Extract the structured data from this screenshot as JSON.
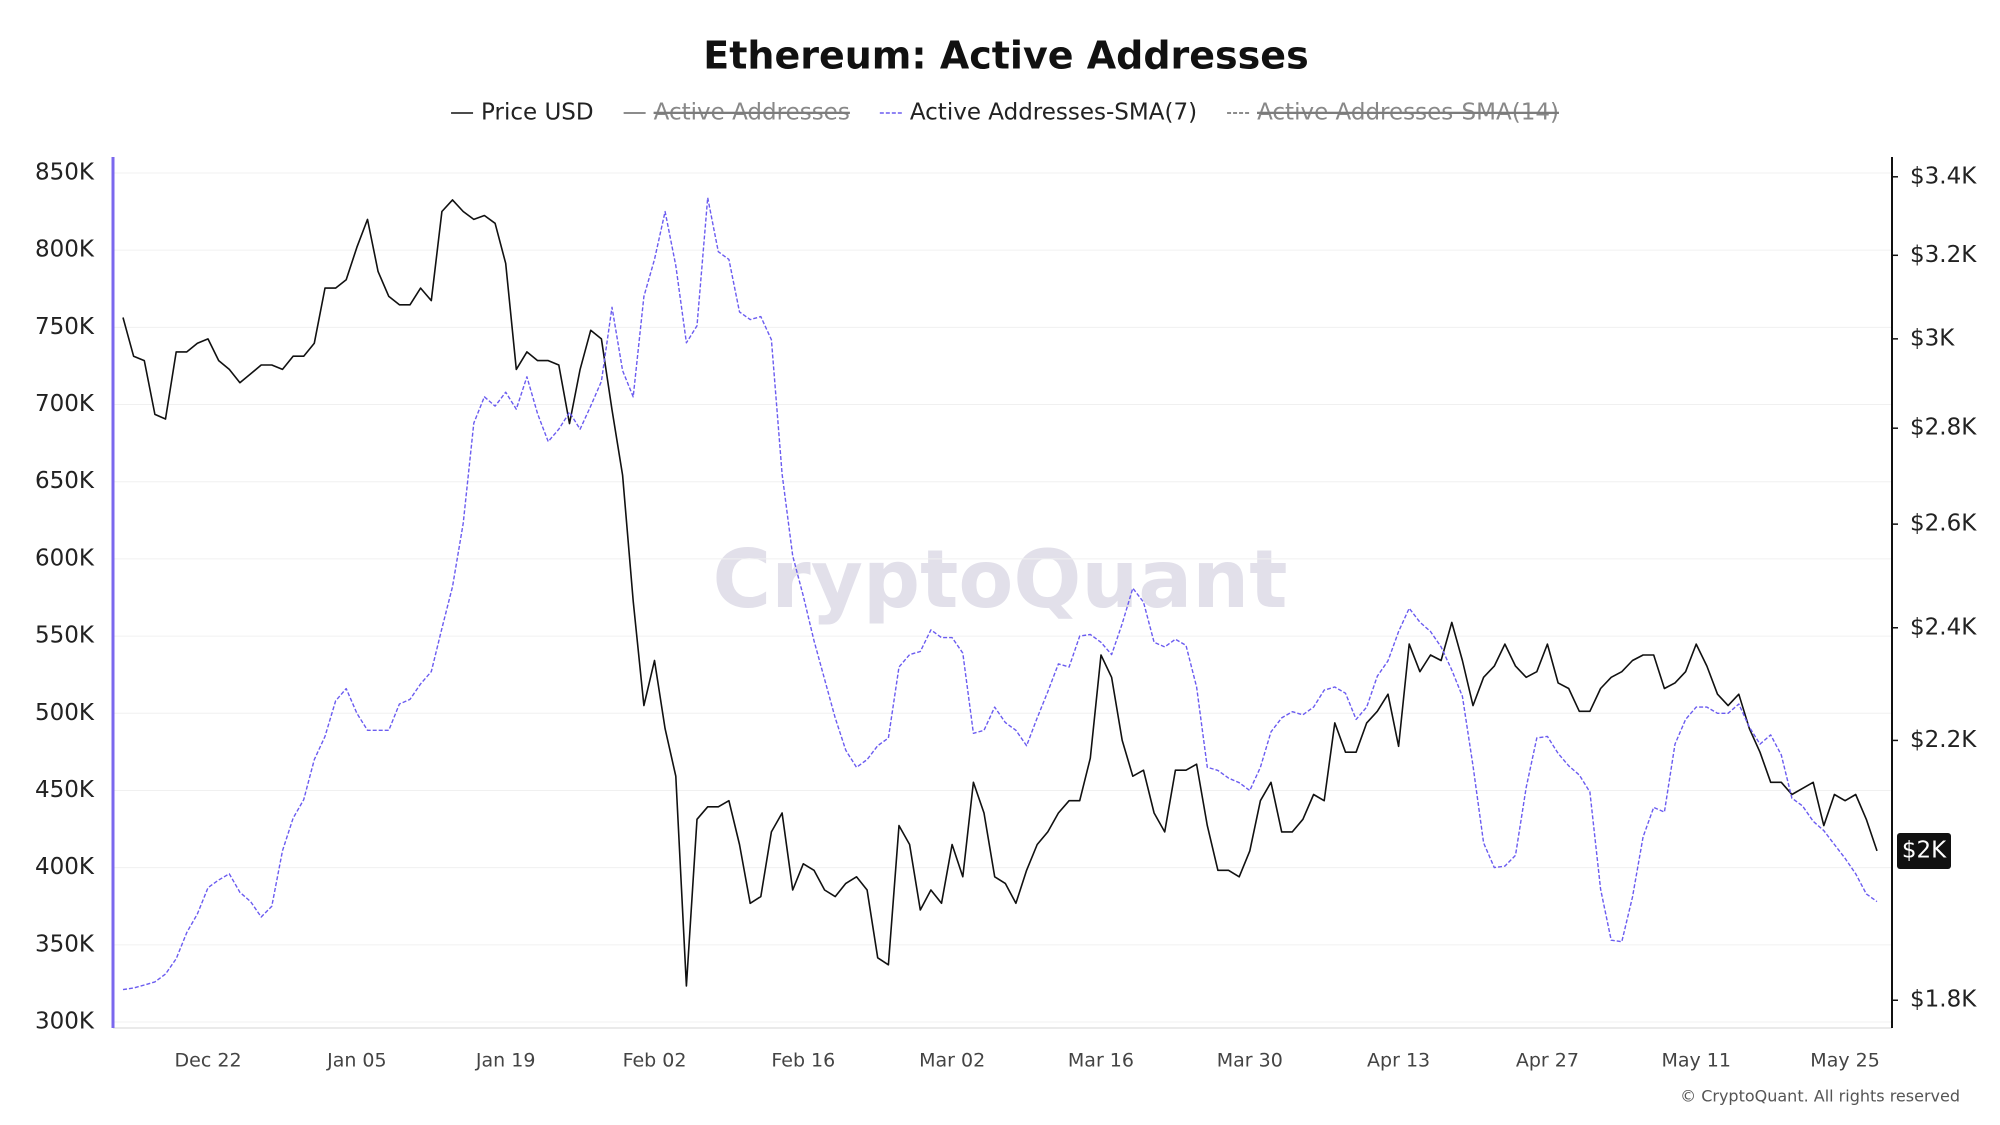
{
  "chart_data": {
    "type": "line",
    "title": "Ethereum: Active Addresses",
    "watermark": "CryptoQuant",
    "copyright": "© CryptoQuant. All rights reserved",
    "categories": [
      null,
      null,
      null,
      null,
      null,
      null,
      null,
      null,
      "Dec 22",
      null,
      null,
      null,
      null,
      null,
      null,
      null,
      null,
      null,
      null,
      null,
      null,
      null,
      "Jan 05",
      null,
      null,
      null,
      null,
      null,
      null,
      null,
      null,
      null,
      null,
      null,
      null,
      null,
      "Jan 19",
      null,
      null,
      null,
      null,
      null,
      null,
      null,
      null,
      null,
      null,
      null,
      null,
      null,
      "Feb 02",
      null,
      null,
      null,
      null,
      null,
      null,
      null,
      null,
      null,
      null,
      null,
      null,
      null,
      "Feb 16",
      null,
      null,
      null,
      null,
      null,
      null,
      null,
      null,
      null,
      null,
      null,
      null,
      null,
      "Mar 02",
      null,
      null,
      null,
      null,
      null,
      null,
      null,
      null,
      null,
      null,
      null,
      null,
      null,
      "Mar 16",
      null,
      null,
      null,
      null,
      null,
      null,
      null,
      null,
      null,
      null,
      null,
      null,
      null,
      "Mar 30",
      null,
      null,
      null,
      null,
      null,
      null,
      null,
      null,
      null,
      null,
      null,
      null,
      null,
      "Apr 13",
      null,
      null,
      null,
      null,
      null,
      null,
      null,
      null,
      null,
      null,
      null,
      null,
      null,
      "Apr 27",
      null,
      null,
      null,
      null,
      null,
      null,
      null,
      null,
      null,
      null,
      null,
      null,
      null,
      "May 11",
      null,
      null,
      null,
      null,
      null,
      null,
      null,
      null,
      null,
      null,
      null,
      null,
      null,
      "May 25",
      null,
      null,
      null
    ],
    "series": [
      {
        "name": "Price USD",
        "color": "#111111",
        "axis": "y2",
        "dash": false,
        "last_value_label": "$2K",
        "values": [
          3050,
          2960,
          2950,
          2830,
          2820,
          2970,
          2970,
          2990,
          3000,
          2950,
          2930,
          2900,
          2920,
          2940,
          2940,
          2930,
          2960,
          2960,
          2990,
          3120,
          3120,
          3140,
          3220,
          3290,
          3160,
          3100,
          3080,
          3080,
          3120,
          3090,
          3310,
          3340,
          3310,
          3290,
          3300,
          3280,
          3180,
          2930,
          2970,
          2950,
          2950,
          2940,
          2810,
          2930,
          3020,
          3000,
          2840,
          2700,
          2450,
          2260,
          2340,
          2220,
          2140,
          1820,
          2070,
          2090,
          2090,
          2100,
          2030,
          1940,
          1950,
          2050,
          2080,
          1960,
          2000,
          1990,
          1960,
          1950,
          1970,
          1980,
          1960,
          1860,
          1850,
          2060,
          2030,
          1930,
          1960,
          1940,
          2030,
          1980,
          2130,
          2080,
          1980,
          1970,
          1940,
          1990,
          2030,
          2050,
          2080,
          2100,
          2100,
          2170,
          2350,
          2310,
          2200,
          2140,
          2150,
          2080,
          2050,
          2150,
          2150,
          2160,
          2060,
          1990,
          1990,
          1980,
          2020,
          2100,
          2130,
          2050,
          2050,
          2070,
          2110,
          2100,
          2230,
          2180,
          2180,
          2230,
          2250,
          2280,
          2190,
          2370,
          2320,
          2350,
          2340,
          2410,
          2340,
          2260,
          2310,
          2330,
          2370,
          2330,
          2310,
          2320,
          2370,
          2300,
          2290,
          2250,
          2250,
          2290,
          2310,
          2320,
          2340,
          2350,
          2350,
          2290,
          2300,
          2320,
          2370,
          2330,
          2280,
          2260,
          2280,
          2220,
          2180,
          2130,
          2130,
          2110,
          2120,
          2130,
          2060,
          2110,
          2100,
          2110,
          2070,
          2020
        ]
      },
      {
        "name": "Active Addresses",
        "color": "#555555",
        "dash": false,
        "hidden": true
      },
      {
        "name": "Active Addresses-SMA(7)",
        "color": "#6b5cf0",
        "dash": true,
        "values": [
          321000,
          322000,
          324000,
          326000,
          331000,
          341000,
          358000,
          370000,
          387000,
          392000,
          396000,
          384000,
          378000,
          368000,
          375000,
          411000,
          432000,
          444000,
          470000,
          485000,
          508000,
          516000,
          500000,
          489000,
          489000,
          489000,
          506000,
          509000,
          519000,
          527000,
          555000,
          582000,
          623000,
          688000,
          705000,
          699000,
          708000,
          697000,
          718000,
          694000,
          676000,
          684000,
          695000,
          684000,
          699000,
          715000,
          763000,
          722000,
          705000,
          770000,
          794000,
          825000,
          790000,
          740000,
          751000,
          834000,
          799000,
          794000,
          760000,
          755000,
          757000,
          742000,
          655000,
          602000,
          576000,
          547000,
          522000,
          497000,
          476000,
          465000,
          470000,
          479000,
          484000,
          530000,
          538000,
          540000,
          554000,
          549000,
          549000,
          539000,
          487000,
          489000,
          504000,
          494000,
          489000,
          479000,
          497000,
          514000,
          532000,
          530000,
          550000,
          551000,
          546000,
          538000,
          558000,
          581000,
          572000,
          546000,
          543000,
          548000,
          544000,
          517000,
          465000,
          463000,
          458000,
          455000,
          450000,
          465000,
          488000,
          497000,
          501000,
          499000,
          504000,
          515000,
          517000,
          513000,
          496000,
          504000,
          524000,
          534000,
          553000,
          568000,
          559000,
          553000,
          543000,
          528000,
          511000,
          466000,
          416000,
          400000,
          401000,
          408000,
          452000,
          484000,
          485000,
          474000,
          466000,
          460000,
          449000,
          386000,
          353000,
          352000,
          381000,
          420000,
          439000,
          436000,
          480000,
          496000,
          504000,
          504000,
          500000,
          500000,
          506000,
          491000,
          480000,
          486000,
          473000,
          445000,
          440000,
          430000,
          424000,
          415000,
          406000,
          396000,
          383000,
          378000
        ]
      },
      {
        "name": "Active Addresses-SMA(14)",
        "color": "#888888",
        "dash": true,
        "hidden": true
      }
    ],
    "ylim": [
      300000,
      850000
    ],
    "yticks": [
      {
        "value": 300000,
        "label": "300K"
      },
      {
        "value": 350000,
        "label": "350K"
      },
      {
        "value": 400000,
        "label": "400K"
      },
      {
        "value": 450000,
        "label": "450K"
      },
      {
        "value": 500000,
        "label": "500K"
      },
      {
        "value": 550000,
        "label": "550K"
      },
      {
        "value": 600000,
        "label": "600K"
      },
      {
        "value": 650000,
        "label": "650K"
      },
      {
        "value": 700000,
        "label": "700K"
      },
      {
        "value": 750000,
        "label": "750K"
      },
      {
        "value": 800000,
        "label": "800K"
      },
      {
        "value": 850000,
        "label": "850K"
      }
    ],
    "y2lim": [
      1770,
      3410
    ],
    "y2log": true,
    "y2ticks": [
      {
        "value": 1800,
        "label": "$1.8K"
      },
      {
        "value": 2200,
        "label": "$2.2K"
      },
      {
        "value": 2400,
        "label": "$2.4K"
      },
      {
        "value": 2600,
        "label": "$2.6K"
      },
      {
        "value": 2800,
        "label": "$2.8K"
      },
      {
        "value": 3000,
        "label": "$3K"
      },
      {
        "value": 3200,
        "label": "$3.2K"
      },
      {
        "value": 3400,
        "label": "$3.4K"
      }
    ],
    "grid": true,
    "left_axis_color": "#7b68ee",
    "legend": "top"
  }
}
